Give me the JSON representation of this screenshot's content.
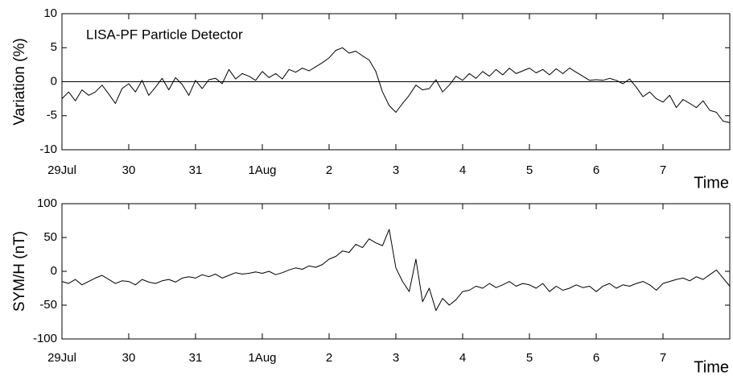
{
  "chart_data": [
    {
      "type": "line",
      "annotation": "LISA-PF Particle Detector",
      "y_label": "Variation (%)",
      "x_label": "Time",
      "xlim": [
        0,
        10
      ],
      "ylim": [
        -10,
        10
      ],
      "yticks": [
        -10,
        -5,
        0,
        5,
        10
      ],
      "reference_line": 0,
      "xticks": [
        {
          "value": 0,
          "label": "29Jul"
        },
        {
          "value": 1,
          "label": "30"
        },
        {
          "value": 2,
          "label": "31"
        },
        {
          "value": 3,
          "label": "1Aug"
        },
        {
          "value": 4,
          "label": "2"
        },
        {
          "value": 5,
          "label": "3"
        },
        {
          "value": 6,
          "label": "4"
        },
        {
          "value": 7,
          "label": "5"
        },
        {
          "value": 8,
          "label": "6"
        },
        {
          "value": 9,
          "label": "7"
        }
      ],
      "color": "#000000",
      "x": [
        0,
        0.1,
        0.2,
        0.3,
        0.4,
        0.5,
        0.6,
        0.7,
        0.8,
        0.9,
        1,
        1.1,
        1.2,
        1.3,
        1.4,
        1.5,
        1.6,
        1.7,
        1.8,
        1.9,
        2,
        2.1,
        2.2,
        2.3,
        2.4,
        2.5,
        2.6,
        2.7,
        2.8,
        2.9,
        3,
        3.1,
        3.2,
        3.3,
        3.4,
        3.5,
        3.6,
        3.7,
        3.8,
        3.9,
        4,
        4.1,
        4.2,
        4.3,
        4.4,
        4.5,
        4.6,
        4.7,
        4.8,
        4.9,
        5,
        5.1,
        5.2,
        5.3,
        5.4,
        5.5,
        5.6,
        5.7,
        5.8,
        5.9,
        6,
        6.1,
        6.2,
        6.3,
        6.4,
        6.5,
        6.6,
        6.7,
        6.8,
        6.9,
        7,
        7.1,
        7.2,
        7.3,
        7.4,
        7.5,
        7.6,
        7.7,
        7.8,
        7.9,
        8,
        8.1,
        8.2,
        8.3,
        8.4,
        8.5,
        8.6,
        8.7,
        8.8,
        8.9,
        9,
        9.1,
        9.2,
        9.3,
        9.4,
        9.5,
        9.6,
        9.7,
        9.8,
        9.9,
        10
      ],
      "values": [
        -2.5,
        -1.5,
        -2.8,
        -1.2,
        -2,
        -1.5,
        -0.5,
        -1.8,
        -3.2,
        -1,
        -0.3,
        -1.5,
        0.2,
        -2,
        -0.8,
        0.5,
        -1.2,
        0.6,
        -0.4,
        -2,
        0.2,
        -1,
        0.3,
        0.5,
        -0.3,
        1.8,
        0.4,
        1.2,
        0.8,
        0.2,
        1.5,
        0.6,
        1.2,
        0.4,
        1.8,
        1.4,
        2,
        1.6,
        2.2,
        2.8,
        3.5,
        4.6,
        5,
        4.2,
        4.5,
        3.8,
        3.2,
        1.5,
        -1.5,
        -3.5,
        -4.5,
        -3.2,
        -2,
        -0.5,
        -1.2,
        -1,
        0.3,
        -1.5,
        -0.5,
        0.8,
        0.2,
        1.2,
        0.5,
        1.5,
        0.8,
        1.8,
        1,
        2,
        1.2,
        1.6,
        2,
        1.3,
        1.8,
        1,
        1.9,
        1.2,
        2,
        1.4,
        0.8,
        0.2,
        0.3,
        0.2,
        0.5,
        0.2,
        -0.3,
        0.4,
        -0.8,
        -2.2,
        -1.5,
        -2.5,
        -3,
        -2,
        -3.8,
        -2.6,
        -3.2,
        -3.8,
        -2.8,
        -4.2,
        -4.5,
        -5.8,
        -6
      ]
    },
    {
      "type": "line",
      "y_label": "SYM/H (nT)",
      "x_label": "Time",
      "xlim": [
        0,
        10
      ],
      "ylim": [
        -100,
        100
      ],
      "yticks": [
        -100,
        -50,
        0,
        50,
        100
      ],
      "xticks": [
        {
          "value": 0,
          "label": "29Jul"
        },
        {
          "value": 1,
          "label": "30"
        },
        {
          "value": 2,
          "label": "31"
        },
        {
          "value": 3,
          "label": "1Aug"
        },
        {
          "value": 4,
          "label": "2"
        },
        {
          "value": 5,
          "label": "3"
        },
        {
          "value": 6,
          "label": "4"
        },
        {
          "value": 7,
          "label": "5"
        },
        {
          "value": 8,
          "label": "6"
        },
        {
          "value": 9,
          "label": "7"
        }
      ],
      "color": "#000000",
      "x": [
        0,
        0.1,
        0.2,
        0.3,
        0.4,
        0.5,
        0.6,
        0.7,
        0.8,
        0.9,
        1,
        1.1,
        1.2,
        1.3,
        1.4,
        1.5,
        1.6,
        1.7,
        1.8,
        1.9,
        2,
        2.1,
        2.2,
        2.3,
        2.4,
        2.5,
        2.6,
        2.7,
        2.8,
        2.9,
        3,
        3.1,
        3.2,
        3.3,
        3.4,
        3.5,
        3.6,
        3.7,
        3.8,
        3.9,
        4,
        4.1,
        4.2,
        4.3,
        4.4,
        4.5,
        4.6,
        4.7,
        4.8,
        4.9,
        5,
        5.1,
        5.2,
        5.3,
        5.4,
        5.5,
        5.6,
        5.7,
        5.8,
        5.9,
        6,
        6.1,
        6.2,
        6.3,
        6.4,
        6.5,
        6.6,
        6.7,
        6.8,
        6.9,
        7,
        7.1,
        7.2,
        7.3,
        7.4,
        7.5,
        7.6,
        7.7,
        7.8,
        7.9,
        8,
        8.1,
        8.2,
        8.3,
        8.4,
        8.5,
        8.6,
        8.7,
        8.8,
        8.9,
        9,
        9.1,
        9.2,
        9.3,
        9.4,
        9.5,
        9.6,
        9.7,
        9.8,
        9.9,
        10
      ],
      "values": [
        -15,
        -18,
        -12,
        -20,
        -15,
        -10,
        -6,
        -12,
        -18,
        -14,
        -15,
        -20,
        -12,
        -16,
        -18,
        -14,
        -12,
        -16,
        -10,
        -8,
        -10,
        -5,
        -8,
        -4,
        -10,
        -6,
        -2,
        -4,
        -3,
        -1,
        -3,
        0,
        -5,
        -2,
        2,
        5,
        3,
        8,
        6,
        10,
        18,
        22,
        30,
        28,
        40,
        35,
        48,
        42,
        38,
        62,
        5,
        -15,
        -30,
        18,
        -45,
        -25,
        -58,
        -40,
        -50,
        -42,
        -30,
        -28,
        -22,
        -25,
        -18,
        -24,
        -20,
        -15,
        -22,
        -18,
        -20,
        -25,
        -18,
        -30,
        -22,
        -28,
        -25,
        -20,
        -24,
        -22,
        -30,
        -22,
        -18,
        -25,
        -20,
        -22,
        -18,
        -15,
        -20,
        -28,
        -18,
        -15,
        -12,
        -10,
        -14,
        -8,
        -12,
        -5,
        2,
        -10,
        -22
      ]
    }
  ]
}
